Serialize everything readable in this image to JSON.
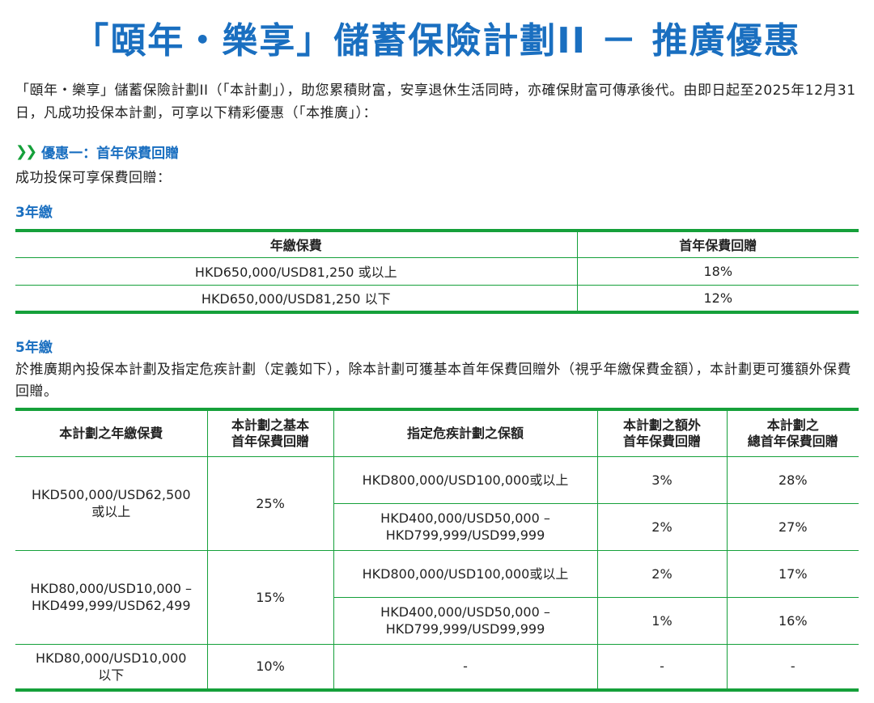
{
  "title": "「頤年・樂享」儲蓄保險計劃II － 推廣優惠",
  "intro": "「頤年・樂享」儲蓄保險計劃II（「本計劃」），助您累積財富，安享退休生活同時，亦確保財富可傳承後代。由即日起至2025年12月31日，凡成功投保本計劃，可享以下精彩優惠（「本推廣」）：",
  "offer1": {
    "heading": "優惠一：首年保費回贈",
    "subtitle": "成功投保可享保費回贈："
  },
  "section3": {
    "title": "3年繳",
    "headers": [
      "年繳保費",
      "首年保費回贈"
    ],
    "rows": [
      [
        "HKD650,000/USD81,250 或以上",
        "18%"
      ],
      [
        "HKD650,000/USD81,250 以下",
        "12%"
      ]
    ]
  },
  "section5": {
    "title": "5年繳",
    "description": "於推廣期內投保本計劃及指定危疾計劃（定義如下），除本計劃可獲基本首年保費回贈外（視乎年繳保費金額），本計劃更可獲額外保費回贈。",
    "headers": [
      "本計劃之年繳保費",
      "本計劃之基本\n首年保費回贈",
      "指定危疾計劃之保額",
      "本計劃之額外\n首年保費回贈",
      "本計劃之\n總首年保費回贈"
    ],
    "groups": [
      {
        "premium": "HKD500,000/USD62,500\n或以上",
        "basic": "25%",
        "rows": [
          {
            "ci": "HKD800,000/USD100,000或以上",
            "extra": "3%",
            "total": "28%"
          },
          {
            "ci": "HKD400,000/USD50,000 –\nHKD799,999/USD99,999",
            "extra": "2%",
            "total": "27%"
          }
        ]
      },
      {
        "premium": "HKD80,000/USD10,000 –\nHKD499,999/USD62,499",
        "basic": "15%",
        "rows": [
          {
            "ci": "HKD800,000/USD100,000或以上",
            "extra": "2%",
            "total": "17%"
          },
          {
            "ci": "HKD400,000/USD50,000 –\nHKD799,999/USD99,999",
            "extra": "1%",
            "total": "16%"
          }
        ]
      },
      {
        "premium": "HKD80,000/USD10,000\n以下",
        "basic": "10%",
        "rows": [
          {
            "ci": "-",
            "extra": "-",
            "total": "-"
          }
        ]
      }
    ]
  },
  "colors": {
    "title_blue": "#1a6fc0",
    "rule_green": "#15a03a"
  }
}
